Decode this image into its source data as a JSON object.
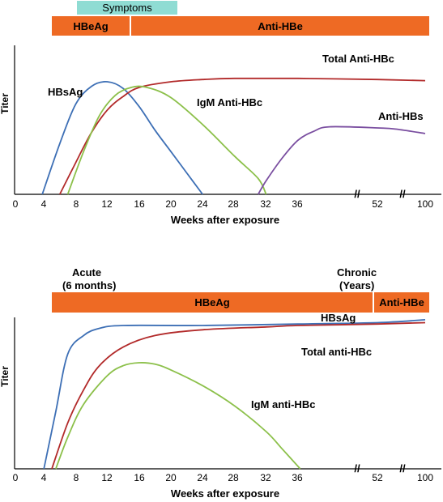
{
  "chart_data": [
    {
      "type": "line",
      "xlabel": "Weeks after exposure",
      "ylabel": "Titer",
      "x_ticks": [
        "0",
        "4",
        "8",
        "12",
        "16",
        "20",
        "24",
        "28",
        "32",
        "36",
        "52",
        "100"
      ],
      "axis_break_after": "36",
      "banners": [
        {
          "label": "Symptoms",
          "from": 8,
          "to": 20,
          "color": "#8fdcd3"
        },
        {
          "label": "HBeAg",
          "from": 5,
          "to": 13.6,
          "color": "#ee6a24"
        },
        {
          "label": "Anti-HBe",
          "from": 14,
          "to": 100,
          "color": "#ee6a24"
        }
      ],
      "series": [
        {
          "name": "HBsAg",
          "color": "#3d6fb5",
          "points": [
            [
              3.8,
              0
            ],
            [
              6,
              45
            ],
            [
              8,
              80
            ],
            [
              10,
              96
            ],
            [
              12,
              100
            ],
            [
              14,
              94
            ],
            [
              16,
              78
            ],
            [
              18,
              57
            ],
            [
              20,
              38
            ],
            [
              22,
              19
            ],
            [
              24,
              0
            ]
          ]
        },
        {
          "name": "Total Anti-HBc",
          "color": "#b22a2a",
          "points": [
            [
              6,
              0
            ],
            [
              8,
              28
            ],
            [
              10,
              55
            ],
            [
              12,
              75
            ],
            [
              14,
              87
            ],
            [
              16,
              95
            ],
            [
              20,
              100
            ],
            [
              24,
              102
            ],
            [
              28,
              103
            ],
            [
              36,
              103
            ],
            [
              52,
              102
            ],
            [
              100,
              101
            ]
          ]
        },
        {
          "name": "IgM Anti-HBc",
          "color": "#8cc04a",
          "points": [
            [
              7,
              0
            ],
            [
              9,
              38
            ],
            [
              11,
              70
            ],
            [
              13,
              88
            ],
            [
              15,
              95
            ],
            [
              17,
              95
            ],
            [
              20,
              86
            ],
            [
              24,
              62
            ],
            [
              28,
              34
            ],
            [
              31,
              14
            ],
            [
              32,
              0
            ]
          ]
        },
        {
          "name": "Anti-HBs",
          "color": "#7a4ea0",
          "points": [
            [
              31,
              0
            ],
            [
              32,
              12
            ],
            [
              34,
              32
            ],
            [
              36,
              48
            ],
            [
              38,
              56
            ],
            [
              40,
              60
            ],
            [
              52,
              59
            ],
            [
              70,
              58
            ],
            [
              100,
              54
            ]
          ]
        }
      ]
    },
    {
      "type": "line",
      "xlabel": "Weeks after exposure",
      "ylabel": "Titer",
      "x_ticks": [
        "0",
        "4",
        "8",
        "12",
        "16",
        "20",
        "24",
        "28",
        "32",
        "36",
        "52",
        "100"
      ],
      "axis_break_after": "36",
      "phase_labels": [
        {
          "text": "Acute\n(6 months)",
          "at": 8
        },
        {
          "text": "Chronic\n(Years)",
          "at": 52
        }
      ],
      "banners": [
        {
          "label": "HBeAg",
          "from": 5,
          "to": 52,
          "color": "#ee6a24"
        },
        {
          "label": "Anti-HBe",
          "from": 52,
          "to": 100,
          "color": "#ee6a24"
        }
      ],
      "series": [
        {
          "name": "HBsAg",
          "color": "#3d6fb5",
          "points": [
            [
              4,
              0
            ],
            [
              5.5,
              40
            ],
            [
              7,
              80
            ],
            [
              9,
              93
            ],
            [
              11,
              98
            ],
            [
              14,
              100
            ],
            [
              24,
              100
            ],
            [
              36,
              101
            ],
            [
              52,
              102
            ],
            [
              100,
              104
            ]
          ]
        },
        {
          "name": "Total anti-HBc",
          "color": "#b22a2a",
          "points": [
            [
              5,
              0
            ],
            [
              7,
              32
            ],
            [
              9,
              55
            ],
            [
              11,
              72
            ],
            [
              14,
              85
            ],
            [
              18,
              93
            ],
            [
              24,
              97
            ],
            [
              32,
              99
            ],
            [
              36,
              100
            ],
            [
              52,
              101
            ],
            [
              100,
              102
            ]
          ]
        },
        {
          "name": "IgM anti-HBc",
          "color": "#8cc04a",
          "points": [
            [
              5.5,
              0
            ],
            [
              7,
              22
            ],
            [
              9,
              45
            ],
            [
              12,
              65
            ],
            [
              14,
              72
            ],
            [
              16,
              74
            ],
            [
              18,
              73
            ],
            [
              20,
              69
            ],
            [
              24,
              58
            ],
            [
              28,
              44
            ],
            [
              32,
              26
            ],
            [
              34,
              14
            ],
            [
              36.3,
              0
            ]
          ]
        }
      ]
    }
  ],
  "texts": {
    "p1": {
      "symptoms": "Symptoms",
      "hbeag": "HBeAg",
      "anti_hbe": "Anti-HBe",
      "ylabel": "Titer",
      "xlabel": "Weeks after exposure",
      "lbl_hbsag": "HBsAg",
      "lbl_total": "Total Anti-HBc",
      "lbl_igm": "IgM Anti-HBc",
      "lbl_antihbs": "Anti-HBs",
      "break": "//"
    },
    "p2": {
      "acute_1": "Acute",
      "acute_2": "(6 months)",
      "chronic_1": "Chronic",
      "chronic_2": "(Years)",
      "hbeag": "HBeAg",
      "anti_hbe": "Anti-HBe",
      "ylabel": "Titer",
      "xlabel": "Weeks after exposure",
      "lbl_hbsag": "HBsAg",
      "lbl_total": "Total anti-HBc",
      "lbl_igm": "IgM anti-HBc",
      "break": "//"
    }
  }
}
